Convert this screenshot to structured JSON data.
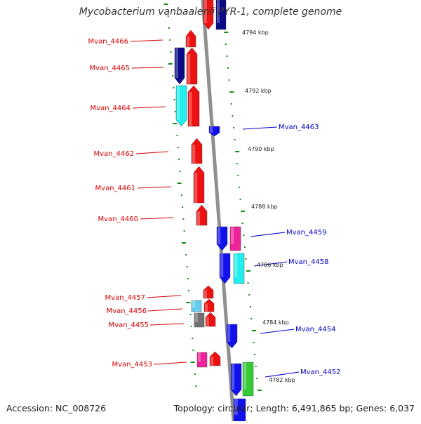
{
  "title": "Mycobacterium vanbaalenii PYR-1, complete genome",
  "accession": "Accession: NC_008726",
  "topology": "Topology: circular; Length: 6,491,865 bp; Genes: 6,037",
  "colors": {
    "reverse_label": "#d40000",
    "forward_label": "#0000cc",
    "backbone": "#909090",
    "tick": "#1a8a1a",
    "red": "#ee1111",
    "blue": "#1111ee",
    "navy": "#0a0a88",
    "cyan": "#22eeee",
    "magenta": "#ee2299",
    "green": "#33cc33",
    "gray": "#707070",
    "lightblue": "#66ccee"
  },
  "kbp_labels": [
    "4794 kbp",
    "4792 kbp",
    "4790 kbp",
    "4788 kbp",
    "4786 kbp",
    "4784 kbp",
    "4782 kbp"
  ],
  "left_genes": [
    "Mvan_4466",
    "Mvan_4465",
    "Mvan_4464",
    "Mvan_4462",
    "Mvan_4461",
    "Mvan_4460",
    "Mvan_4457",
    "Mvan_4456",
    "Mvan_4455",
    "Mvan_4453"
  ],
  "right_genes": [
    "Mvan_4463",
    "Mvan_4459",
    "Mvan_4458",
    "Mvan_4454",
    "Mvan_4452"
  ],
  "shape_colors": [
    "red",
    "navy",
    "red",
    "cyan",
    "red",
    "red",
    "red",
    "red",
    "red",
    "red",
    "lightblue",
    "red",
    "gray",
    "red",
    "magenta",
    "red",
    "blue",
    "blue",
    "blue",
    "magenta",
    "blue",
    "cyan",
    "blue",
    "blue",
    "green",
    "blue",
    "blue",
    "navy"
  ]
}
